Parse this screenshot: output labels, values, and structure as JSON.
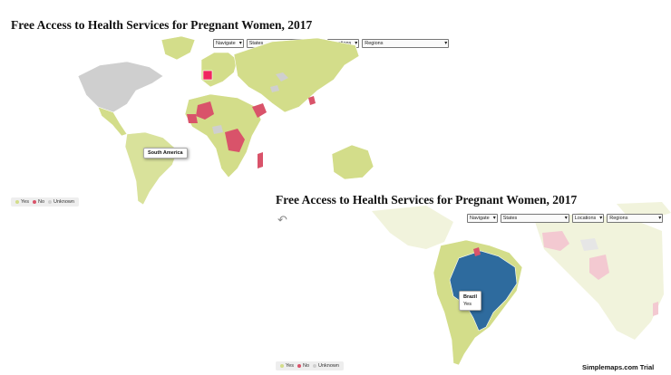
{
  "map1": {
    "title": "Free Access to Health Services for Pregnant Women, 2017",
    "controls": [
      "Navigate",
      "States",
      "Locations",
      "Regions"
    ],
    "tooltip": {
      "label": "South America"
    },
    "legend": [
      {
        "label": "Yes",
        "color": "#d3dd8a"
      },
      {
        "label": "No",
        "color": "#d9536a"
      },
      {
        "label": "Unknown",
        "color": "#cfcfcf"
      }
    ]
  },
  "map2": {
    "title": "Free Access to Health Services for Pregnant Women, 2017",
    "controls": [
      "Navigate",
      "States",
      "Locations",
      "Regions"
    ],
    "tooltip": {
      "label": "Brazil",
      "value": "Yes"
    },
    "legend": [
      {
        "label": "Yes",
        "color": "#d3dd8a"
      },
      {
        "label": "No",
        "color": "#d9536a"
      },
      {
        "label": "Unknown",
        "color": "#cfcfcf"
      }
    ],
    "back_icon": "back-arrow-icon"
  },
  "credit": "Simplemaps.com Trial",
  "colors": {
    "yes": "#d3dd8a",
    "no": "#d9536a",
    "unknown": "#cfcfcf",
    "highlight": "#f0265f",
    "selected": "#2e6b9e",
    "faded_yes": "#f1f3dc",
    "faded_no": "#f3c9d1"
  }
}
